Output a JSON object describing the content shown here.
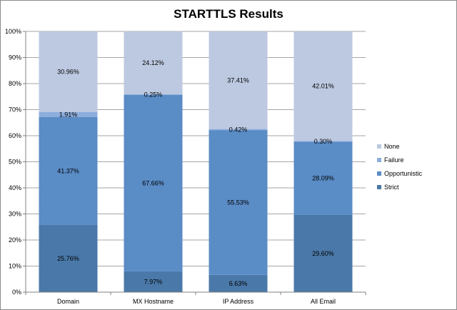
{
  "chart_data": {
    "type": "bar",
    "stacked": true,
    "title": "STARTTLS Results",
    "categories": [
      "Domain",
      "MX Hostname",
      "IP Address",
      "All Email"
    ],
    "series": [
      {
        "name": "Strict",
        "color": "#4a78a8",
        "values": [
          25.76,
          7.97,
          6.63,
          29.6
        ],
        "labels": [
          "25.76%",
          "7.97%",
          "6.63%",
          "29.60%"
        ]
      },
      {
        "name": "Opportunistic",
        "color": "#5a8cc6",
        "values": [
          41.37,
          67.66,
          55.53,
          28.09
        ],
        "labels": [
          "41.37%",
          "67.66%",
          "55.53%",
          "28.09%"
        ]
      },
      {
        "name": "Failure",
        "color": "#8caedd",
        "values": [
          1.91,
          0.25,
          0.42,
          0.3
        ],
        "labels": [
          "1.91%",
          "0.25%",
          "0.42%",
          "0.30%"
        ]
      },
      {
        "name": "None",
        "color": "#bcc9e0",
        "values": [
          30.96,
          24.12,
          37.41,
          42.01
        ],
        "labels": [
          "30.96%",
          "24.12%",
          "37.41%",
          "42.01%"
        ]
      }
    ],
    "y_ticks": [
      "0%",
      "10%",
      "20%",
      "30%",
      "40%",
      "50%",
      "60%",
      "70%",
      "80%",
      "90%",
      "100%"
    ],
    "ylim": [
      0,
      100
    ],
    "grid": true,
    "legend": "right"
  }
}
